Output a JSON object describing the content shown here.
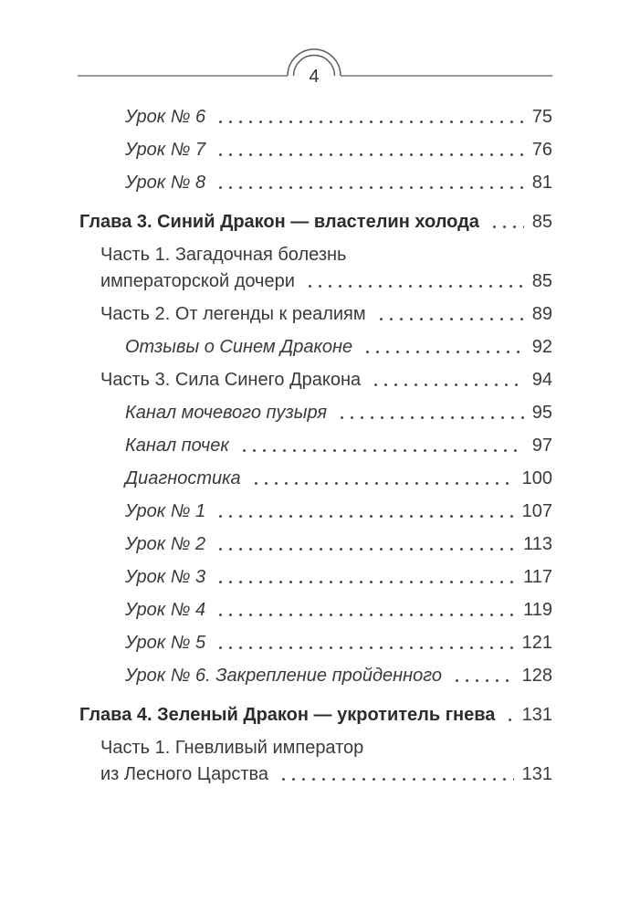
{
  "page": {
    "number": "4"
  },
  "ornament": {
    "name": "double-arch-over-rule"
  },
  "colors": {
    "ink": "#3a3a3c",
    "chapter_ink": "#2c2c2e",
    "rule": "#777777",
    "arc": "#5a5a5a",
    "dot_leader": "#4a4a4a",
    "background": "#ffffff"
  },
  "toc": {
    "entries": [
      {
        "level": "sub",
        "lines": [
          "Урок № 6"
        ],
        "page": "75"
      },
      {
        "level": "sub",
        "lines": [
          "Урок № 7"
        ],
        "page": "76"
      },
      {
        "level": "sub",
        "lines": [
          "Урок № 8"
        ],
        "page": "81"
      },
      {
        "level": "chapter",
        "lines": [
          "Глава 3. Синий Дракон — властелин холода"
        ],
        "page": "85"
      },
      {
        "level": "part",
        "lines": [
          "Часть 1. Загадочная болезнь",
          "императорской дочери"
        ],
        "page": "85"
      },
      {
        "level": "part",
        "lines": [
          "Часть 2. От легенды к реалиям"
        ],
        "page": "89"
      },
      {
        "level": "sub",
        "lines": [
          "Отзывы о Синем Драконе"
        ],
        "page": "92"
      },
      {
        "level": "part",
        "lines": [
          "Часть 3. Сила Синего Дракона"
        ],
        "page": "94"
      },
      {
        "level": "sub",
        "lines": [
          "Канал мочевого пузыря"
        ],
        "page": "95"
      },
      {
        "level": "sub",
        "lines": [
          "Канал почек"
        ],
        "page": "97"
      },
      {
        "level": "sub",
        "lines": [
          "Диагностика"
        ],
        "page": "100"
      },
      {
        "level": "sub",
        "lines": [
          "Урок № 1"
        ],
        "page": "107"
      },
      {
        "level": "sub",
        "lines": [
          "Урок № 2"
        ],
        "page": "113"
      },
      {
        "level": "sub",
        "lines": [
          "Урок № 3"
        ],
        "page": "117"
      },
      {
        "level": "sub",
        "lines": [
          "Урок № 4"
        ],
        "page": "119"
      },
      {
        "level": "sub",
        "lines": [
          "Урок № 5"
        ],
        "page": "121"
      },
      {
        "level": "sub",
        "lines": [
          "Урок № 6. Закрепление пройденного"
        ],
        "page": "128"
      },
      {
        "level": "chapter",
        "lines": [
          "Глава 4. Зеленый Дракон — укротитель гнева"
        ],
        "page": "131"
      },
      {
        "level": "part",
        "lines": [
          "Часть 1. Гневливый император",
          "из Лесного Царства"
        ],
        "page": "131"
      }
    ]
  }
}
